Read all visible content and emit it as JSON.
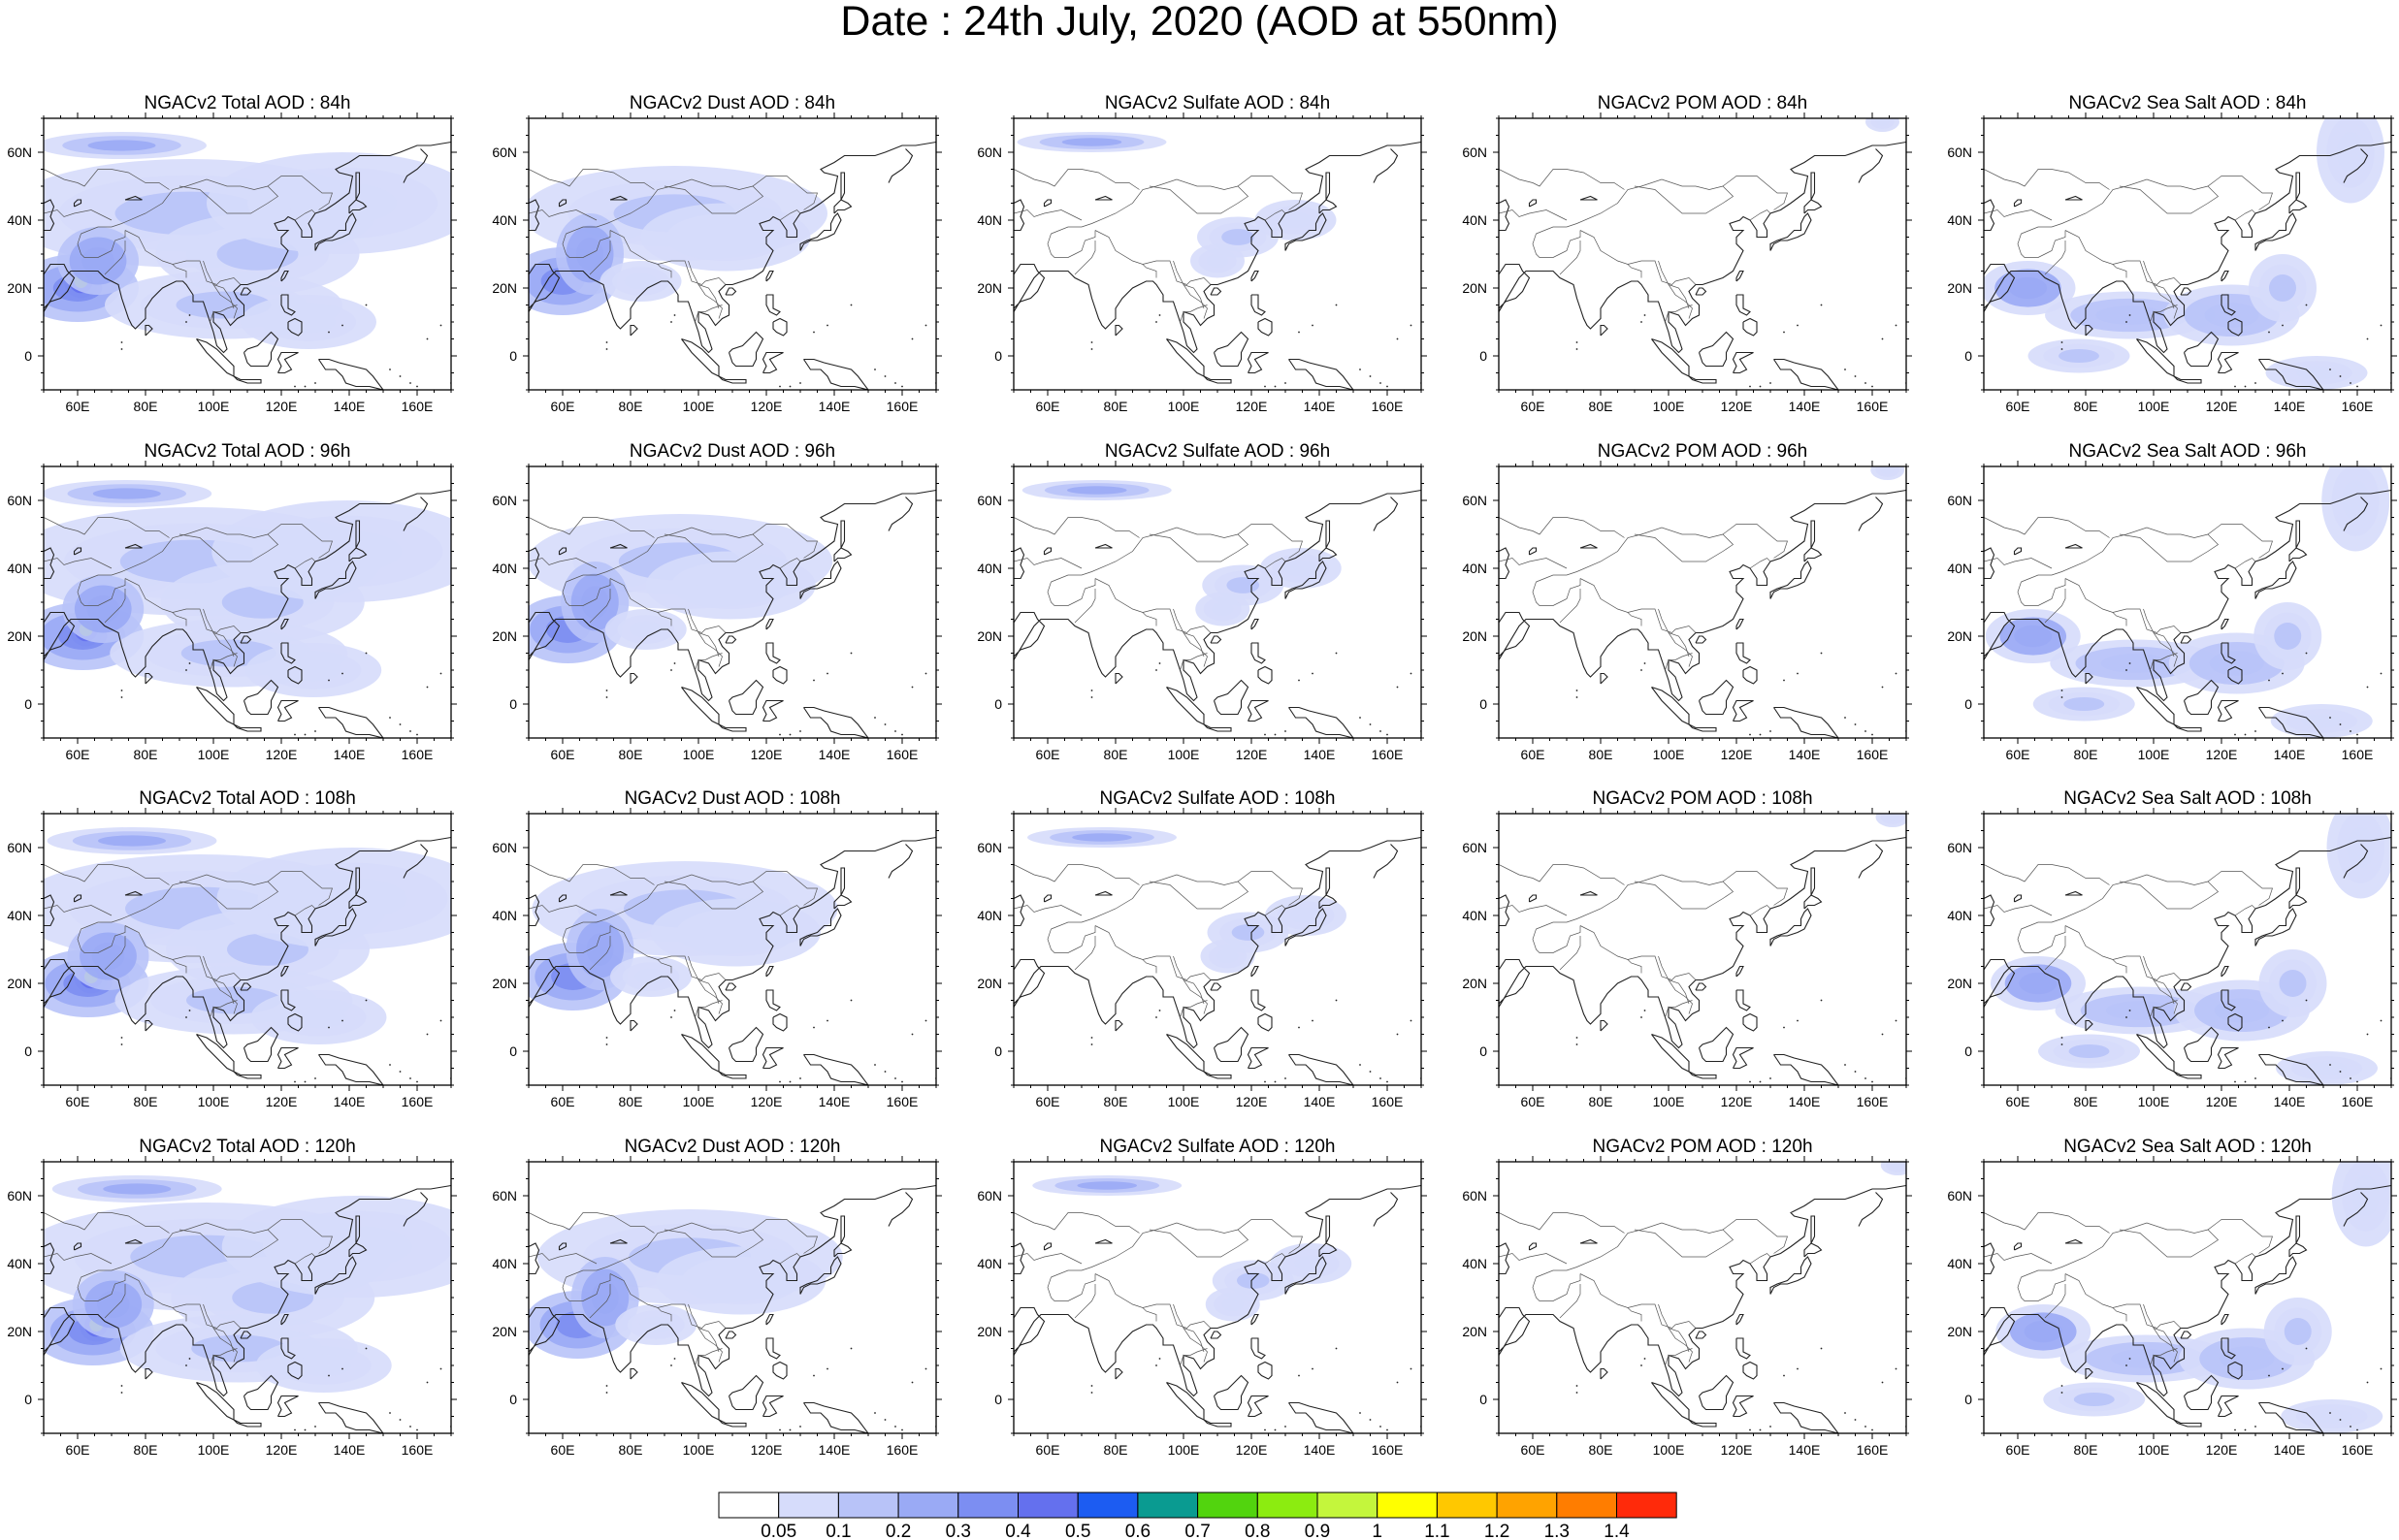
{
  "main_title": "Date : 24th July, 2020 (AOD at 550nm)",
  "lon_labels": [
    "60E",
    "80E",
    "100E",
    "120E",
    "140E",
    "160E"
  ],
  "lat_labels": [
    "60N",
    "40N",
    "20N",
    "0"
  ],
  "map_extent": {
    "lon_min": 50,
    "lon_max": 170,
    "lat_min": -10,
    "lat_max": 70
  },
  "species": [
    "Total",
    "Dust",
    "Sulfate",
    "POM",
    "Sea Salt"
  ],
  "lead_times": [
    "84h",
    "96h",
    "108h",
    "120h"
  ],
  "panels": [
    {
      "row": 0,
      "col": 0,
      "species": "Total",
      "lead": "84h",
      "title": "NGACv2 Total AOD : 84h"
    },
    {
      "row": 0,
      "col": 1,
      "species": "Dust",
      "lead": "84h",
      "title": "NGACv2 Dust AOD : 84h"
    },
    {
      "row": 0,
      "col": 2,
      "species": "Sulfate",
      "lead": "84h",
      "title": "NGACv2 Sulfate AOD : 84h"
    },
    {
      "row": 0,
      "col": 3,
      "species": "POM",
      "lead": "84h",
      "title": "NGACv2 POM AOD : 84h"
    },
    {
      "row": 0,
      "col": 4,
      "species": "Sea Salt",
      "lead": "84h",
      "title": "NGACv2 Sea Salt AOD : 84h"
    },
    {
      "row": 1,
      "col": 0,
      "species": "Total",
      "lead": "96h",
      "title": "NGACv2 Total AOD : 96h"
    },
    {
      "row": 1,
      "col": 1,
      "species": "Dust",
      "lead": "96h",
      "title": "NGACv2 Dust AOD : 96h"
    },
    {
      "row": 1,
      "col": 2,
      "species": "Sulfate",
      "lead": "96h",
      "title": "NGACv2 Sulfate AOD : 96h"
    },
    {
      "row": 1,
      "col": 3,
      "species": "POM",
      "lead": "96h",
      "title": "NGACv2 POM AOD : 96h"
    },
    {
      "row": 1,
      "col": 4,
      "species": "Sea Salt",
      "lead": "96h",
      "title": "NGACv2 Sea Salt AOD : 96h"
    },
    {
      "row": 2,
      "col": 0,
      "species": "Total",
      "lead": "108h",
      "title": "NGACv2 Total AOD : 108h"
    },
    {
      "row": 2,
      "col": 1,
      "species": "Dust",
      "lead": "108h",
      "title": "NGACv2 Dust AOD : 108h"
    },
    {
      "row": 2,
      "col": 2,
      "species": "Sulfate",
      "lead": "108h",
      "title": "NGACv2 Sulfate AOD : 108h"
    },
    {
      "row": 2,
      "col": 3,
      "species": "POM",
      "lead": "108h",
      "title": "NGACv2 POM AOD : 108h"
    },
    {
      "row": 2,
      "col": 4,
      "species": "Sea Salt",
      "lead": "108h",
      "title": "NGACv2 Sea Salt AOD : 108h"
    },
    {
      "row": 3,
      "col": 0,
      "species": "Total",
      "lead": "120h",
      "title": "NGACv2 Total AOD : 120h"
    },
    {
      "row": 3,
      "col": 1,
      "species": "Dust",
      "lead": "120h",
      "title": "NGACv2 Dust AOD : 120h"
    },
    {
      "row": 3,
      "col": 2,
      "species": "Sulfate",
      "lead": "120h",
      "title": "NGACv2 Sulfate AOD : 120h"
    },
    {
      "row": 3,
      "col": 3,
      "species": "POM",
      "lead": "120h",
      "title": "NGACv2 POM AOD : 120h"
    },
    {
      "row": 3,
      "col": 4,
      "species": "Sea Salt",
      "lead": "120h",
      "title": "NGACv2 Sea Salt  AOD : 120h"
    }
  ],
  "colorbar": {
    "labels": [
      "0.05",
      "0.1",
      "0.2",
      "0.3",
      "0.4",
      "0.5",
      "0.6",
      "0.7",
      "0.8",
      "0.9",
      "1",
      "1.1",
      "1.2",
      "1.3",
      "1.4"
    ],
    "colors": [
      "#ffffff",
      "#d6dcfb",
      "#b8c3f8",
      "#9aaaf5",
      "#7c8ef2",
      "#6470ee",
      "#1c5cf2",
      "#0a9b91",
      "#52d40e",
      "#8cec10",
      "#c4f63c",
      "#ffff00",
      "#ffc800",
      "#ffa300",
      "#ff7d00",
      "#ff2a0a"
    ]
  }
}
